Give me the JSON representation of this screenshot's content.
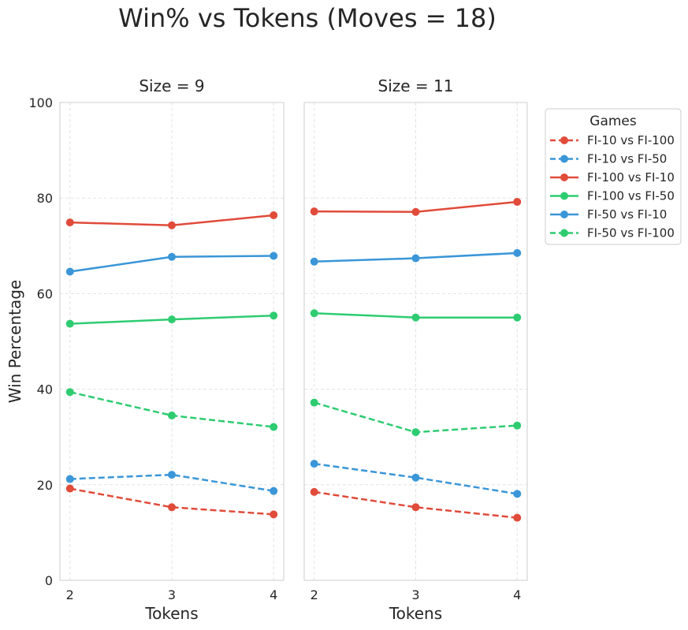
{
  "figure": {
    "title": "Win% vs Tokens (Moves = 18)",
    "ylabel": "Win Percentage"
  },
  "legend": {
    "title": "Games",
    "placement": "outside-right"
  },
  "chart_data": [
    {
      "type": "line",
      "title": "Size = 9",
      "xlabel": "Tokens",
      "ylabel": "Win Percentage",
      "x": [
        2,
        3,
        4
      ],
      "ylim": [
        0,
        100
      ],
      "yticks": [
        0,
        20,
        40,
        60,
        80,
        100
      ],
      "grid": true,
      "series": [
        {
          "name": "FI-10 vs FI-100",
          "values": [
            19.2,
            15.3,
            13.8
          ],
          "color": "#e04b3a",
          "dashed": true
        },
        {
          "name": "FI-10 vs FI-50",
          "values": [
            21.2,
            22.1,
            18.7
          ],
          "color": "#3a96d8",
          "dashed": true
        },
        {
          "name": "FI-100 vs FI-10",
          "values": [
            74.9,
            74.3,
            76.4
          ],
          "color": "#e04b3a",
          "dashed": false
        },
        {
          "name": "FI-100 vs FI-50",
          "values": [
            53.7,
            54.6,
            55.4
          ],
          "color": "#2ecc71",
          "dashed": false
        },
        {
          "name": "FI-50 vs FI-10",
          "values": [
            64.6,
            67.7,
            67.9
          ],
          "color": "#3a96d8",
          "dashed": false
        },
        {
          "name": "FI-50 vs FI-100",
          "values": [
            39.4,
            34.5,
            32.1
          ],
          "color": "#2ecc71",
          "dashed": true
        }
      ]
    },
    {
      "type": "line",
      "title": "Size = 11",
      "xlabel": "Tokens",
      "ylabel": "",
      "x": [
        2,
        3,
        4
      ],
      "ylim": [
        0,
        100
      ],
      "grid": true,
      "series": [
        {
          "name": "FI-10 vs FI-100",
          "values": [
            18.5,
            15.3,
            13.1
          ],
          "color": "#e04b3a",
          "dashed": true
        },
        {
          "name": "FI-10 vs FI-50",
          "values": [
            24.4,
            21.5,
            18.1
          ],
          "color": "#3a96d8",
          "dashed": true
        },
        {
          "name": "FI-100 vs FI-10",
          "values": [
            77.2,
            77.1,
            79.2
          ],
          "color": "#e04b3a",
          "dashed": false
        },
        {
          "name": "FI-100 vs FI-50",
          "values": [
            55.9,
            55.0,
            55.0
          ],
          "color": "#2ecc71",
          "dashed": false
        },
        {
          "name": "FI-50 vs FI-10",
          "values": [
            66.7,
            67.4,
            68.5
          ],
          "color": "#3a96d8",
          "dashed": false
        },
        {
          "name": "FI-50 vs FI-100",
          "values": [
            37.2,
            31.0,
            32.4
          ],
          "color": "#2ecc71",
          "dashed": true
        }
      ]
    }
  ]
}
